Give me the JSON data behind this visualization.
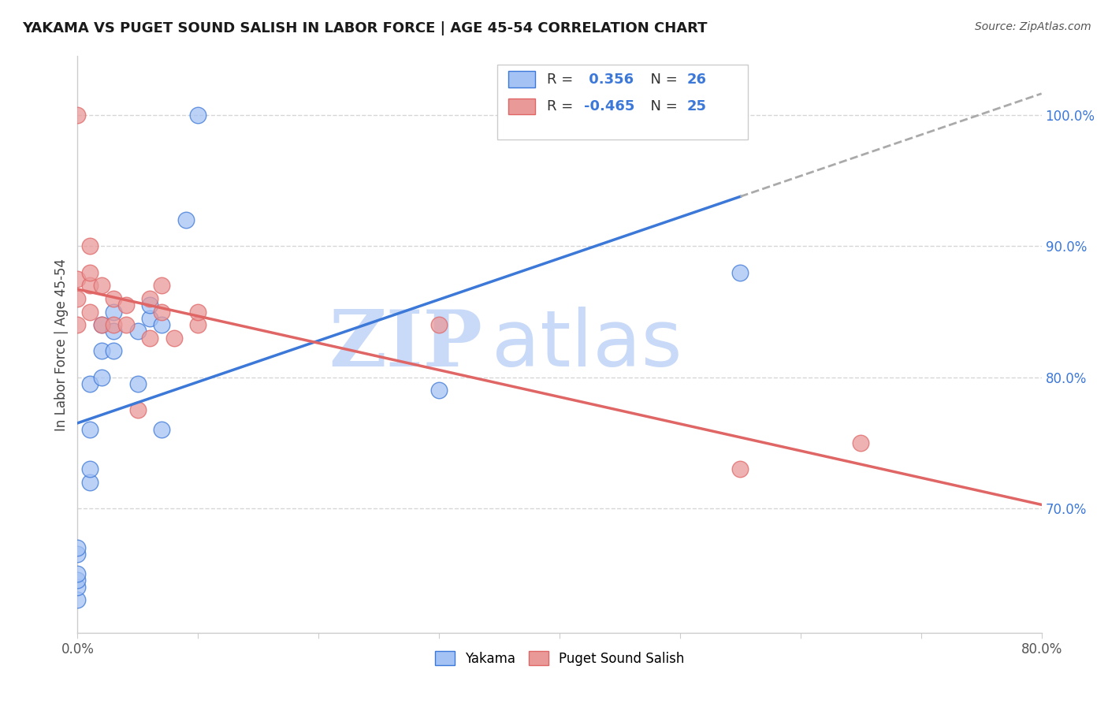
{
  "title": "YAKAMA VS PUGET SOUND SALISH IN LABOR FORCE | AGE 45-54 CORRELATION CHART",
  "source": "Source: ZipAtlas.com",
  "ylabel": "In Labor Force | Age 45-54",
  "xlim": [
    0.0,
    0.8
  ],
  "ylim": [
    0.605,
    1.045
  ],
  "ytick_labels": [
    "70.0%",
    "80.0%",
    "90.0%",
    "100.0%"
  ],
  "ytick_values": [
    0.7,
    0.8,
    0.9,
    1.0
  ],
  "xtick_values": [
    0.0,
    0.1,
    0.2,
    0.3,
    0.4,
    0.5,
    0.6,
    0.7,
    0.8
  ],
  "blue_color": "#a4c2f4",
  "pink_color": "#ea9999",
  "blue_line_color": "#3c78d8",
  "pink_line_color": "#e06666",
  "r_blue": 0.356,
  "n_blue": 26,
  "r_pink": -0.465,
  "n_pink": 25,
  "yakama_x": [
    0.0,
    0.0,
    0.0,
    0.0,
    0.0,
    0.0,
    0.01,
    0.01,
    0.01,
    0.01,
    0.02,
    0.02,
    0.02,
    0.03,
    0.03,
    0.03,
    0.05,
    0.05,
    0.06,
    0.06,
    0.07,
    0.07,
    0.09,
    0.1,
    0.3,
    0.55
  ],
  "yakama_y": [
    0.63,
    0.64,
    0.645,
    0.65,
    0.665,
    0.67,
    0.72,
    0.73,
    0.76,
    0.795,
    0.8,
    0.82,
    0.84,
    0.82,
    0.835,
    0.85,
    0.795,
    0.835,
    0.845,
    0.855,
    0.76,
    0.84,
    0.92,
    1.0,
    0.79,
    0.88
  ],
  "puget_x": [
    0.0,
    0.0,
    0.0,
    0.0,
    0.01,
    0.01,
    0.01,
    0.01,
    0.02,
    0.02,
    0.03,
    0.03,
    0.04,
    0.04,
    0.05,
    0.06,
    0.06,
    0.07,
    0.07,
    0.08,
    0.1,
    0.1,
    0.3,
    0.55,
    0.65
  ],
  "puget_y": [
    0.84,
    0.86,
    0.875,
    1.0,
    0.85,
    0.87,
    0.88,
    0.9,
    0.84,
    0.87,
    0.84,
    0.86,
    0.84,
    0.855,
    0.775,
    0.83,
    0.86,
    0.85,
    0.87,
    0.83,
    0.84,
    0.85,
    0.84,
    0.73,
    0.75
  ],
  "watermark_zip": "ZIP",
  "watermark_atlas": "atlas",
  "watermark_color": "#c9daf8",
  "background_color": "#ffffff",
  "grid_color": "#cccccc"
}
